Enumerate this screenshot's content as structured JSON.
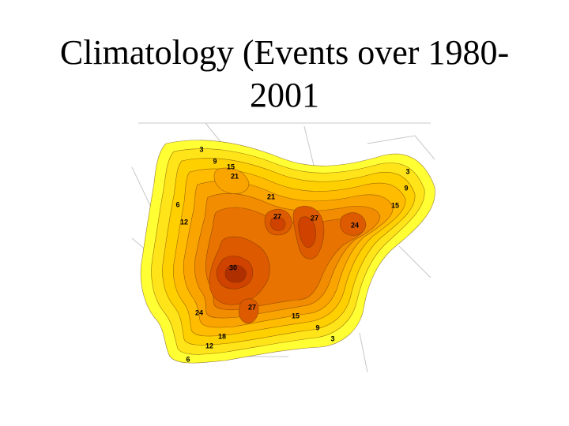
{
  "slide": {
    "title_line1": "Climatology (Events over 1980-",
    "title_line2": "2001"
  },
  "map": {
    "palette": [
      "#ffff33",
      "#ffe419",
      "#ffd000",
      "#ffbc00",
      "#faa400",
      "#f28c00",
      "#e87300",
      "#dd5a00",
      "#cf4200",
      "#b02f00"
    ],
    "contour_labels": [
      {
        "id": "3-nw",
        "text": "3"
      },
      {
        "id": "9-nw",
        "text": "9"
      },
      {
        "id": "15-n",
        "text": "15"
      },
      {
        "id": "21-n",
        "text": "21"
      },
      {
        "id": "6-w",
        "text": "6"
      },
      {
        "id": "12-w",
        "text": "12"
      },
      {
        "id": "21-c",
        "text": "21"
      },
      {
        "id": "27-c1",
        "text": "27"
      },
      {
        "id": "27-c2",
        "text": "27"
      },
      {
        "id": "24-e",
        "text": "24"
      },
      {
        "id": "15-ne",
        "text": "15"
      },
      {
        "id": "3-ne",
        "text": "3"
      },
      {
        "id": "9-ne",
        "text": "9"
      },
      {
        "id": "30-sw",
        "text": "30"
      },
      {
        "id": "27-s",
        "text": "27"
      },
      {
        "id": "24-sw",
        "text": "24"
      },
      {
        "id": "15-s",
        "text": "15"
      },
      {
        "id": "9-s",
        "text": "9"
      },
      {
        "id": "3-s",
        "text": "3"
      },
      {
        "id": "18-s",
        "text": "18"
      },
      {
        "id": "12-s",
        "text": "12"
      },
      {
        "id": "6-s",
        "text": "6"
      }
    ]
  }
}
